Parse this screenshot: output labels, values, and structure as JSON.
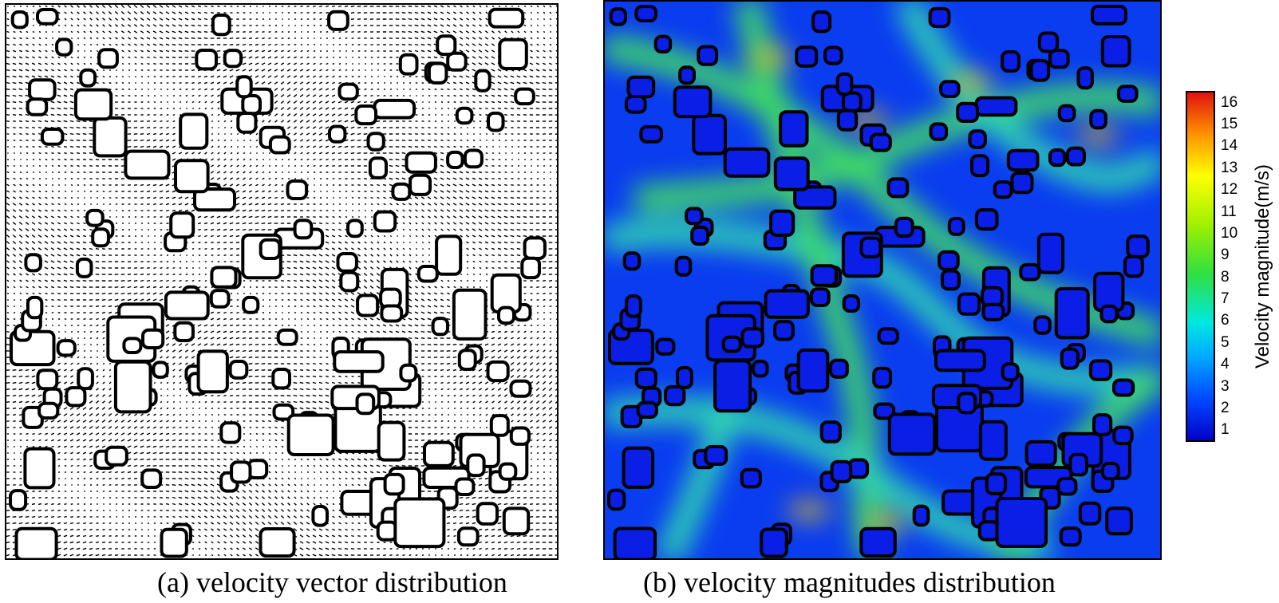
{
  "captions": {
    "a": "(a) velocity vector distribution",
    "b": "(b) velocity magnitudes distribution"
  },
  "colorbar": {
    "label": "Velocity magnitude(m/s)",
    "ticks": [
      "1",
      "2",
      "3",
      "4",
      "5",
      "6",
      "7",
      "8",
      "9",
      "10",
      "11",
      "12",
      "13",
      "14",
      "15",
      "16"
    ],
    "range": [
      0.5,
      16.5
    ],
    "colors": [
      "#0000c8",
      "#0048ff",
      "#00c8ff",
      "#22e8a0",
      "#30e030",
      "#ffff00",
      "#ff8000",
      "#e02010"
    ]
  },
  "colors": {
    "obstacle_fill_b": "#0a1ee6",
    "background_b": "#0a3cf0",
    "outline": "#000000",
    "vector": "#000000"
  }
}
